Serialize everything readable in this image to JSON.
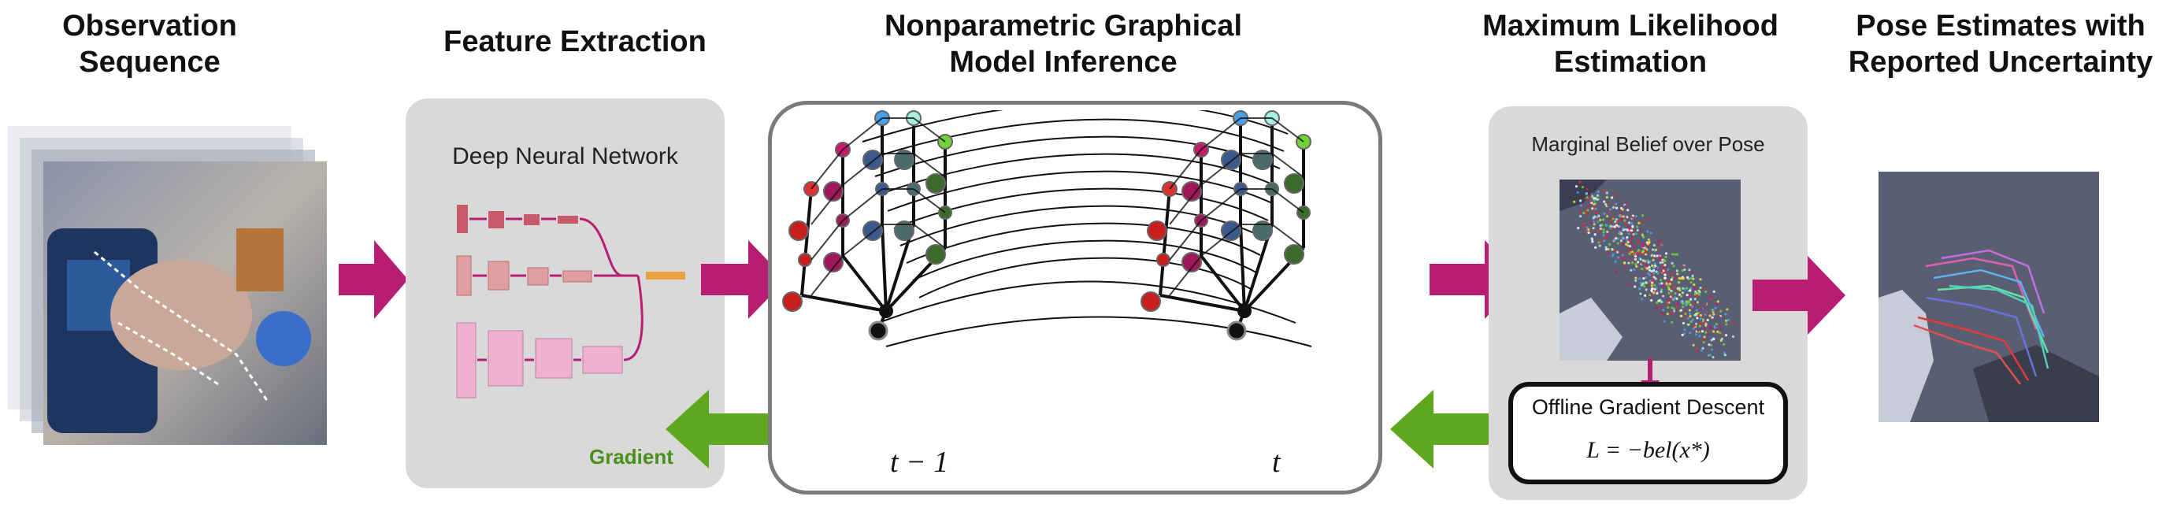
{
  "stages": {
    "observation": "Observation\nSequence",
    "feature": "Feature Extraction",
    "graphical": "Nonparametric Graphical\nModel Inference",
    "mle": "Maximum Likelihood\nEstimation",
    "pose": "Pose Estimates with\nReported Uncertainty"
  },
  "feature_panel": {
    "label": "Deep Neural Network",
    "gradient_label": "Gradient"
  },
  "graph_panel": {
    "time_prev": "t − 1",
    "time_curr": "t"
  },
  "mle_panel": {
    "label": "Marginal Belief over Pose",
    "descent_title": "Offline Gradient Descent",
    "descent_formula": "L = −bel(x*)"
  },
  "colors": {
    "forward_arrow": "#b81d74",
    "backward_arrow": "#5fa71f",
    "panel_bg": "#d9d9d9",
    "graph_border": "#7a7a7a",
    "gradient_text": "#4a8f1a",
    "finger_colors": [
      "#c81e1e",
      "#a0185a",
      "#3a5a8c",
      "#4a6b6b",
      "#3a6b2a"
    ],
    "tip_colors": [
      "#e03030",
      "#c81a6a",
      "#4aa0e8",
      "#a8f0e0",
      "#6fd23a"
    ]
  },
  "icons": [
    "hand-depth-image",
    "neural-network-icon",
    "belief-scatter-image",
    "pose-estimate-image"
  ]
}
